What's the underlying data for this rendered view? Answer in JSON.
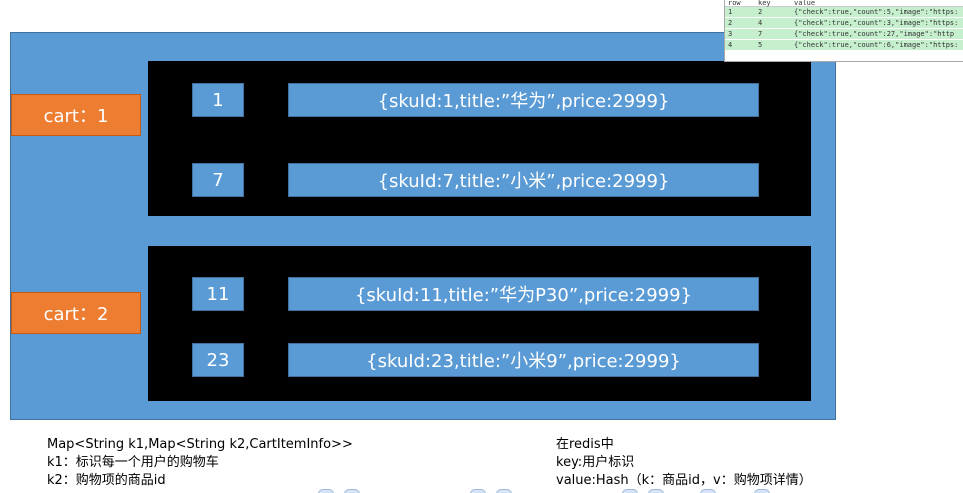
{
  "carts": [
    {
      "label": "cart：1",
      "items": [
        {
          "key": "1",
          "value": "{skuId:1,title:”华为”,price:2999}"
        },
        {
          "key": "7",
          "value": "{skuId:7,title:”小米”,price:2999}"
        }
      ]
    },
    {
      "label": "cart：2",
      "items": [
        {
          "key": "11",
          "value": "{skuId:11,title:”华为P30”,price:2999}"
        },
        {
          "key": "23",
          "value": "{skuId:23,title:”小米9”,price:2999}"
        }
      ]
    }
  ],
  "notes_left": [
    "Map<String k1,Map<String k2,CartItemInfo>>",
    "k1：标识每一个用户的购物车",
    "k2：购物项的商品id"
  ],
  "notes_right": [
    "在redis中",
    "key:用户标识",
    "value:Hash（k：商品id，v：购物项详情）"
  ],
  "redis_table": {
    "headers": [
      "row",
      "key",
      "value"
    ],
    "rows": [
      {
        "row": "1",
        "key": "2",
        "value": "{\"check\":true,\"count\":5,\"image\":\"https:"
      },
      {
        "row": "2",
        "key": "4",
        "value": "{\"check\":true,\"count\":3,\"image\":\"https:"
      },
      {
        "row": "3",
        "key": "7",
        "value": "{\"check\":true,\"count\":27,\"image\":\"http"
      },
      {
        "row": "4",
        "key": "5",
        "value": "{\"check\":true,\"count\":6,\"image\":\"https:"
      }
    ]
  },
  "colors": {
    "panel": "#5b9bd5",
    "cart_label": "#ed7d31",
    "group_box": "#000000",
    "table_row": "#c6efce"
  }
}
